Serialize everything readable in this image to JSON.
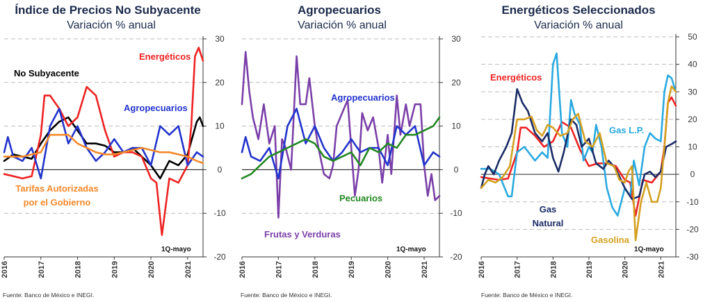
{
  "chart_data": [
    {
      "type": "line",
      "title": "Índice de Precios No Subyacente",
      "subtitle": "Variación % anual",
      "x_ticks": [
        "2016",
        "2017",
        "2018",
        "2019",
        "2020",
        "2021"
      ],
      "y_ticks": [
        "30",
        "20",
        "10",
        "0",
        "-10",
        "-20"
      ],
      "ylim": [
        -20,
        30
      ],
      "y_axis_side": "right",
      "grid": "dashed horizontal",
      "note": "1Q-mayo",
      "source": "Fuente: Banco de México e INEGI.",
      "series": [
        {
          "name": "No Subyacente",
          "color": "#000000",
          "x": [
            2016.0,
            2016.25,
            2016.5,
            2016.75,
            2017.0,
            2017.25,
            2017.5,
            2017.75,
            2018.0,
            2018.25,
            2018.5,
            2018.75,
            2019.0,
            2019.25,
            2019.5,
            2019.75,
            2020.0,
            2020.25,
            2020.5,
            2020.75,
            2021.0,
            2021.25,
            2021.33,
            2021.42
          ],
          "y": [
            2,
            3.5,
            3,
            2.5,
            6,
            9,
            11,
            12,
            9,
            6,
            6,
            5.5,
            4,
            4,
            5,
            3,
            1,
            -2,
            2,
            1,
            3.5,
            11,
            12,
            10
          ]
        },
        {
          "name": "Energéticos",
          "color": "#ee2222",
          "x": [
            2016.0,
            2016.25,
            2016.5,
            2016.75,
            2017.0,
            2017.1,
            2017.25,
            2017.5,
            2017.75,
            2018.0,
            2018.25,
            2018.5,
            2018.75,
            2019.0,
            2019.25,
            2019.5,
            2019.75,
            2020.0,
            2020.15,
            2020.3,
            2020.5,
            2020.75,
            2021.0,
            2021.1,
            2021.2,
            2021.3,
            2021.42
          ],
          "y": [
            -1,
            -1.5,
            -2,
            -1.5,
            8,
            17,
            17,
            14,
            10,
            12,
            19,
            17,
            9,
            3,
            4,
            4,
            3,
            -2,
            -3,
            -15,
            -2,
            -3,
            1,
            10,
            26,
            28,
            25
          ]
        },
        {
          "name": "Agropecuarios",
          "color": "#2233cc",
          "x": [
            2016.0,
            2016.1,
            2016.25,
            2016.5,
            2016.75,
            2017.0,
            2017.25,
            2017.5,
            2017.75,
            2018.0,
            2018.25,
            2018.5,
            2018.75,
            2019.0,
            2019.25,
            2019.5,
            2019.75,
            2020.0,
            2020.25,
            2020.5,
            2020.75,
            2021.0,
            2021.25,
            2021.42
          ],
          "y": [
            4,
            7.5,
            3,
            2,
            5,
            -2,
            10,
            14,
            6,
            10,
            5,
            2,
            4,
            7,
            4,
            5,
            5,
            1,
            10,
            8,
            10,
            1,
            4,
            3
          ]
        },
        {
          "name": "Tarifas Autorizadas por el Gobierno",
          "color": "#f5892a",
          "x": [
            2016.0,
            2016.25,
            2016.5,
            2016.75,
            2017.0,
            2017.25,
            2017.5,
            2017.75,
            2018.0,
            2018.25,
            2018.5,
            2018.75,
            2019.0,
            2019.25,
            2019.5,
            2019.75,
            2020.0,
            2020.25,
            2020.5,
            2020.75,
            2021.0,
            2021.25,
            2021.42
          ],
          "y": [
            3,
            3,
            3,
            3.5,
            4,
            8,
            8,
            8,
            6,
            5,
            4,
            3.5,
            3.5,
            4,
            4.5,
            5,
            4.5,
            4,
            4,
            3.5,
            3,
            2,
            1.5
          ]
        }
      ]
    },
    {
      "type": "line",
      "title": "Agropecuarios",
      "subtitle": "Variación % anual",
      "x_ticks": [
        "2016",
        "2017",
        "2018",
        "2019",
        "2020",
        "2021"
      ],
      "y_ticks": [
        "30",
        "20",
        "10",
        "0",
        "-10",
        "-20"
      ],
      "ylim": [
        -20,
        30
      ],
      "y_axis_side": "right",
      "grid": "dashed horizontal",
      "note": "1Q-mayo",
      "source": "Fuente: Banco de México e INEGI.",
      "series": [
        {
          "name": "Frutas y Verduras",
          "color": "#7a3fa8",
          "x": [
            2016.0,
            2016.1,
            2016.2,
            2016.3,
            2016.45,
            2016.6,
            2016.75,
            2016.9,
            2017.0,
            2017.1,
            2017.2,
            2017.35,
            2017.5,
            2017.6,
            2017.75,
            2017.85,
            2018.0,
            2018.1,
            2018.25,
            2018.4,
            2018.5,
            2018.6,
            2018.75,
            2018.9,
            2019.0,
            2019.1,
            2019.2,
            2019.3,
            2019.45,
            2019.6,
            2019.75,
            2019.85,
            2020.0,
            2020.1,
            2020.25,
            2020.35,
            2020.5,
            2020.6,
            2020.75,
            2020.9,
            2021.0,
            2021.1,
            2021.2,
            2021.3,
            2021.42
          ],
          "y": [
            15,
            27,
            18,
            12,
            7,
            15,
            6,
            10,
            -11,
            7,
            5,
            0,
            26,
            15,
            15,
            21,
            10,
            5,
            -1,
            -2,
            1,
            10,
            13,
            16,
            5,
            -6,
            0,
            13,
            9,
            12,
            5,
            -3,
            8,
            -1,
            17,
            8,
            15,
            10,
            15,
            15,
            1,
            -6,
            -1,
            -7,
            -6
          ]
        },
        {
          "name": "Agropecuarios",
          "color": "#2233cc",
          "x": [
            2016.0,
            2016.1,
            2016.25,
            2016.5,
            2016.75,
            2017.0,
            2017.25,
            2017.5,
            2017.75,
            2018.0,
            2018.25,
            2018.5,
            2018.75,
            2019.0,
            2019.25,
            2019.5,
            2019.75,
            2020.0,
            2020.25,
            2020.5,
            2020.75,
            2021.0,
            2021.25,
            2021.42
          ],
          "y": [
            4,
            7.5,
            3,
            2,
            5,
            -2,
            10,
            14,
            6,
            10,
            5,
            2,
            4,
            7,
            4,
            5,
            5,
            1,
            10,
            8,
            10,
            1,
            4,
            3
          ]
        },
        {
          "name": "Pecuarios",
          "color": "#228822",
          "x": [
            2016.0,
            2016.25,
            2016.5,
            2016.75,
            2017.0,
            2017.25,
            2017.5,
            2017.75,
            2018.0,
            2018.25,
            2018.5,
            2018.75,
            2019.0,
            2019.25,
            2019.5,
            2019.75,
            2020.0,
            2020.25,
            2020.5,
            2020.75,
            2021.0,
            2021.25,
            2021.42
          ],
          "y": [
            -2,
            -1,
            1,
            3,
            4,
            5,
            6,
            7,
            6,
            3,
            2,
            3,
            4,
            1,
            5,
            4,
            6,
            5,
            8,
            8,
            9,
            10,
            12
          ]
        }
      ]
    },
    {
      "type": "line",
      "title": "Energéticos Seleccionados",
      "subtitle": "Variación % anual",
      "x_ticks": [
        "2016",
        "2017",
        "2018",
        "2019",
        "2020",
        "2021"
      ],
      "y_ticks": [
        "50",
        "40",
        "30",
        "20",
        "10",
        "0",
        "-10",
        "-20",
        "-30"
      ],
      "ylim": [
        -30,
        50
      ],
      "y_axis_side": "right",
      "grid": "dashed horizontal",
      "note": "1Q-mayo",
      "source": "Fuente: Banco de México e INEGI.",
      "series": [
        {
          "name": "Energéticos",
          "color": "#ee2222",
          "x": [
            2016.0,
            2016.25,
            2016.5,
            2016.75,
            2017.0,
            2017.1,
            2017.25,
            2017.5,
            2017.75,
            2018.0,
            2018.25,
            2018.5,
            2018.75,
            2019.0,
            2019.25,
            2019.5,
            2019.75,
            2020.0,
            2020.15,
            2020.3,
            2020.5,
            2020.75,
            2021.0,
            2021.1,
            2021.2,
            2021.3,
            2021.42
          ],
          "y": [
            -1,
            -1.5,
            -2,
            -1.5,
            8,
            17,
            17,
            14,
            10,
            12,
            19,
            17,
            9,
            3,
            4,
            4,
            3,
            -2,
            -3,
            -15,
            -2,
            -3,
            1,
            10,
            26,
            28,
            25
          ]
        },
        {
          "name": "Gas L.P.",
          "color": "#29a9e0",
          "x": [
            2016.0,
            2016.25,
            2016.5,
            2016.75,
            2016.85,
            2017.0,
            2017.2,
            2017.5,
            2017.7,
            2017.85,
            2018.0,
            2018.1,
            2018.25,
            2018.4,
            2018.5,
            2018.6,
            2018.75,
            2018.85,
            2019.0,
            2019.1,
            2019.2,
            2019.35,
            2019.5,
            2019.65,
            2019.8,
            2020.0,
            2020.15,
            2020.25,
            2020.4,
            2020.55,
            2020.7,
            2020.85,
            2021.0,
            2021.1,
            2021.2,
            2021.3,
            2021.42
          ],
          "y": [
            2,
            2,
            0,
            -8,
            -8,
            8,
            10,
            5,
            8,
            6,
            40,
            44,
            15,
            10,
            27,
            22,
            18,
            5,
            10,
            8,
            18,
            10,
            -5,
            -12,
            -15,
            -5,
            -8,
            5,
            -4,
            10,
            15,
            13,
            12,
            30,
            36,
            35,
            30
          ]
        },
        {
          "name": "Gas Natural",
          "color": "#1a2b66",
          "x": [
            2016.0,
            2016.1,
            2016.2,
            2016.35,
            2016.5,
            2016.7,
            2016.85,
            2017.0,
            2017.15,
            2017.3,
            2017.5,
            2017.7,
            2017.85,
            2018.0,
            2018.15,
            2018.3,
            2018.5,
            2018.65,
            2018.8,
            2019.0,
            2019.2,
            2019.4,
            2019.55,
            2019.75,
            2020.0,
            2020.2,
            2020.4,
            2020.55,
            2020.7,
            2020.85,
            2021.0,
            2021.15,
            2021.3,
            2021.42
          ],
          "y": [
            -5,
            0,
            3,
            0,
            5,
            10,
            15,
            31,
            26,
            23,
            15,
            12,
            15,
            6,
            1,
            8,
            20,
            18,
            10,
            13,
            4,
            2,
            5,
            2,
            -5,
            -9,
            -8,
            0,
            1,
            -1,
            1,
            10,
            11,
            12
          ]
        },
        {
          "name": "Gasolina",
          "color": "#d4a020",
          "x": [
            2016.0,
            2016.2,
            2016.4,
            2016.6,
            2016.8,
            2017.0,
            2017.2,
            2017.4,
            2017.55,
            2017.7,
            2017.85,
            2018.0,
            2018.2,
            2018.4,
            2018.55,
            2018.7,
            2018.9,
            2019.1,
            2019.3,
            2019.5,
            2019.7,
            2019.85,
            2020.0,
            2020.1,
            2020.2,
            2020.3,
            2020.45,
            2020.6,
            2020.75,
            2020.9,
            2021.0,
            2021.1,
            2021.2,
            2021.3,
            2021.42
          ],
          "y": [
            -5,
            -2,
            -3,
            -1,
            3,
            20,
            20,
            21,
            16,
            14,
            18,
            17,
            14,
            15,
            20,
            22,
            12,
            10,
            15,
            4,
            3,
            -2,
            -3,
            1,
            3,
            -24,
            -10,
            -3,
            -10,
            -10,
            -5,
            10,
            26,
            32,
            30
          ]
        }
      ]
    }
  ],
  "labels": {
    "p1_nosub": "No Subyacente",
    "p1_energeticos": "Energéticos",
    "p1_agro": "Agropecuarios",
    "p1_tarifas_1": "Tarifas Autorizadas",
    "p1_tarifas_2": "por el Gobierno",
    "p2_agro": "Agropecuarios",
    "p2_pecuarios": "Pecuarios",
    "p2_frutas": "Frutas y Verduras",
    "p3_energeticos": "Energéticos",
    "p3_gaslp": "Gas L.P.",
    "p3_gasnat_1": "Gas",
    "p3_gasnat_2": "Natural",
    "p3_gasolina": "Gasolina"
  }
}
